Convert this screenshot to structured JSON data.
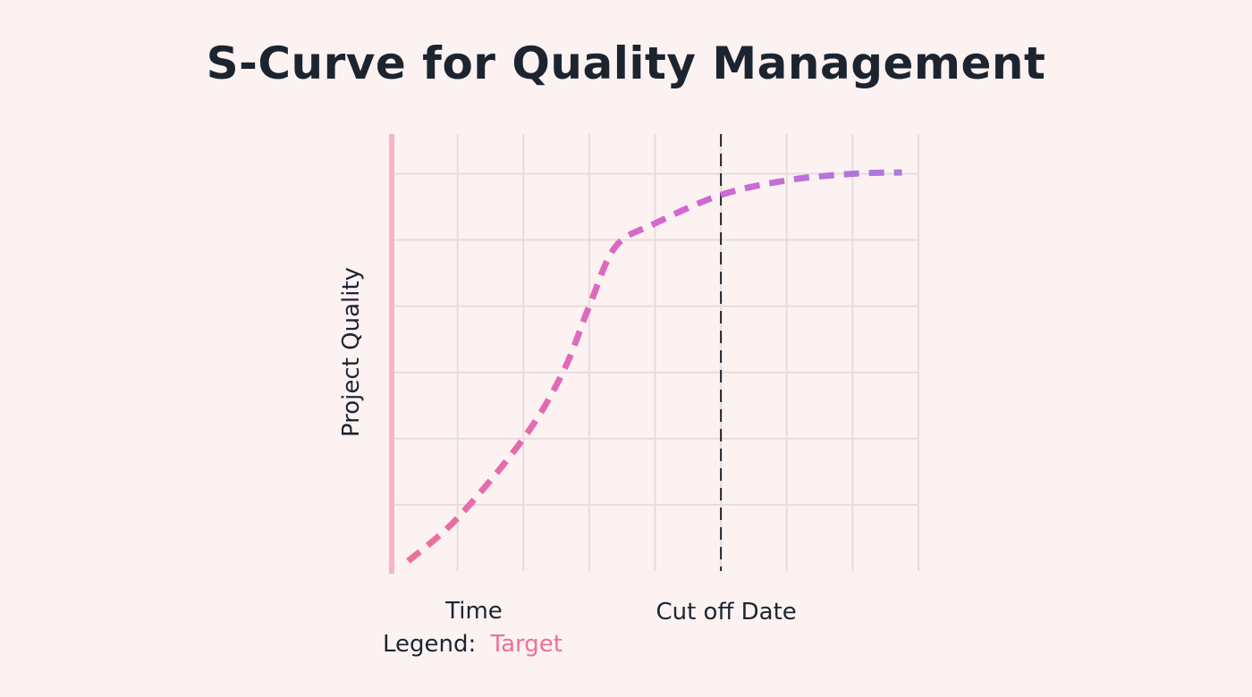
{
  "title": "S-Curve for Quality Management",
  "chart_data": {
    "type": "line",
    "xlabel": "Time",
    "ylabel": "Project Quality",
    "xlim": [
      0,
      8
    ],
    "ylim": [
      0,
      6.6
    ],
    "grid": true,
    "legend": {
      "prefix": "Legend:",
      "entries": [
        "Target"
      ],
      "placement": "bottom-left"
    },
    "annotation": {
      "label": "Cut off Date",
      "x": 5
    },
    "series": [
      {
        "name": "Target",
        "style": "dashed",
        "x": [
          0.25,
          1.0,
          2.0,
          2.6,
          3.0,
          3.4,
          4.0,
          5.0,
          6.0,
          7.0,
          7.75
        ],
        "y": [
          0.15,
          0.8,
          2.0,
          3.0,
          4.0,
          4.9,
          5.25,
          5.68,
          5.9,
          6.0,
          6.02
        ]
      }
    ]
  },
  "colors": {
    "background": "#fdf2f2",
    "grid": "#e6dcdc",
    "axis_gradient": [
      "#f9b3c2",
      "#ee6a97",
      "#c95ad6",
      "#9b7be0"
    ],
    "curve_gradient": [
      "#ef6f9a",
      "#d466cf",
      "#a77be0"
    ],
    "cutoff_line": "#1c2430",
    "legend_target": "#ef6f9a"
  }
}
